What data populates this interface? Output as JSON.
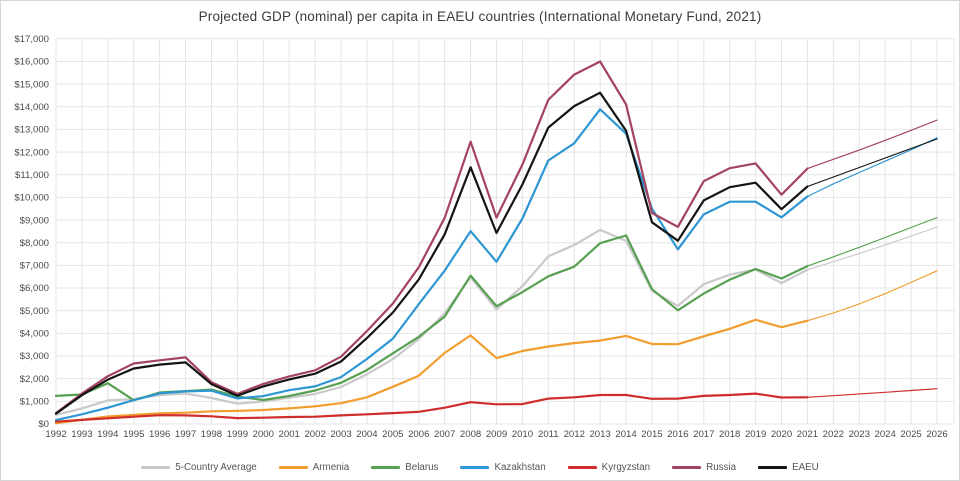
{
  "title": "Projected GDP (nominal) per capita in EAEU countries (International Monetary Fund, 2021)",
  "chart_data": {
    "type": "line",
    "title": "Projected GDP (nominal) per capita in EAEU countries (International Monetary Fund, 2021)",
    "xlabel": "",
    "ylabel": "",
    "ylim": [
      0,
      17000
    ],
    "y_tick_step": 1000,
    "grid": true,
    "legend_position": "bottom",
    "projection_start_year": 2021,
    "x": [
      1992,
      1993,
      1994,
      1995,
      1996,
      1997,
      1998,
      1999,
      2000,
      2001,
      2002,
      2003,
      2004,
      2005,
      2006,
      2007,
      2008,
      2009,
      2010,
      2011,
      2012,
      2013,
      2014,
      2015,
      2016,
      2017,
      2018,
      2019,
      2020,
      2021,
      2022,
      2023,
      2024,
      2025,
      2026
    ],
    "x_tick_labels": [
      "1992",
      "1993",
      "1994",
      "1995",
      "1996",
      "1997",
      "1998",
      "1999",
      "2000",
      "2001",
      "2002",
      "2003",
      "2004",
      "2005",
      "2006",
      "2007",
      "2008",
      "2009",
      "2010",
      "2011",
      "2012",
      "2013",
      "2014",
      "2015",
      "2016",
      "2017",
      "2018",
      "2019",
      "2020",
      "2021",
      "2022",
      "2023",
      "2024",
      "2025",
      "2026"
    ],
    "y_tick_labels": [
      "$0",
      "$1,000",
      "$2,000",
      "$3,000",
      "$4,000",
      "$5,000",
      "$6,000",
      "$7,000",
      "$8,000",
      "$9,000",
      "$10,000",
      "$11,000",
      "$12,000",
      "$13,000",
      "$14,000",
      "$15,000",
      "$16,000",
      "$17,000"
    ],
    "series": [
      {
        "name": "5-Country Average",
        "color": "#c9c9c9",
        "values": [
          406,
          686,
          1042,
          1098,
          1282,
          1342,
          1146,
          902,
          992,
          1166,
          1322,
          1632,
          2192,
          2866,
          3746,
          4894,
          6478,
          5050,
          6088,
          7400,
          7900,
          8566,
          8080,
          5880,
          5214,
          6168,
          6590,
          6818,
          6220,
          6804,
          7162,
          7524,
          7900,
          8292,
          8694
        ]
      },
      {
        "name": "Armenia",
        "color": "#f29d2e",
        "values": [
          40,
          180,
          330,
          400,
          470,
          500,
          560,
          580,
          620,
          690,
          780,
          920,
          1180,
          1640,
          2130,
          3140,
          3910,
          2910,
          3220,
          3420,
          3570,
          3680,
          3890,
          3530,
          3520,
          3870,
          4200,
          4600,
          4270,
          4560,
          4900,
          5300,
          5750,
          6250,
          6760
        ]
      },
      {
        "name": "Belarus",
        "color": "#57a051",
        "values": [
          1240,
          1300,
          1800,
          1050,
          1390,
          1450,
          1520,
          1210,
          1060,
          1240,
          1480,
          1820,
          2380,
          3120,
          3850,
          4740,
          6550,
          5200,
          5820,
          6520,
          6940,
          7980,
          8320,
          5950,
          5020,
          5760,
          6370,
          6840,
          6420,
          6970,
          7380,
          7800,
          8230,
          8670,
          9110
        ]
      },
      {
        "name": "Kazakhstan",
        "color": "#2e96d2",
        "values": [
          170,
          430,
          720,
          1050,
          1350,
          1440,
          1470,
          1130,
          1230,
          1490,
          1660,
          2070,
          2870,
          3770,
          5290,
          6770,
          8510,
          7160,
          9070,
          11630,
          12390,
          13890,
          12810,
          9500,
          7710,
          9250,
          9810,
          9810,
          9120,
          10040,
          10600,
          11100,
          11600,
          12100,
          12630
        ]
      },
      {
        "name": "Kyrgyzstan",
        "color": "#d02c2c",
        "values": [
          100,
          180,
          250,
          320,
          390,
          380,
          340,
          260,
          280,
          310,
          320,
          380,
          430,
          480,
          540,
          720,
          960,
          870,
          880,
          1120,
          1180,
          1280,
          1280,
          1110,
          1120,
          1240,
          1280,
          1340,
          1170,
          1180,
          1250,
          1330,
          1400,
          1480,
          1560
        ]
      },
      {
        "name": "Russia",
        "color": "#a4435f",
        "values": [
          480,
          1340,
          2110,
          2670,
          2810,
          2940,
          1840,
          1330,
          1770,
          2100,
          2370,
          2970,
          4100,
          5320,
          6920,
          9100,
          12460,
          9110,
          11450,
          14310,
          15420,
          16000,
          14100,
          9310,
          8700,
          10720,
          11290,
          11500,
          10120,
          11270,
          11680,
          12090,
          12520,
          12960,
          13410
        ]
      },
      {
        "name": "EAEU",
        "color": "#141414",
        "values": [
          460,
          1270,
          1960,
          2450,
          2620,
          2720,
          1760,
          1250,
          1660,
          1970,
          2220,
          2760,
          3790,
          4920,
          6380,
          8370,
          11330,
          8430,
          10570,
          13080,
          14030,
          14620,
          12940,
          8900,
          8090,
          9870,
          10450,
          10650,
          9480,
          10480,
          10900,
          11320,
          11740,
          12160,
          12580
        ]
      }
    ]
  }
}
